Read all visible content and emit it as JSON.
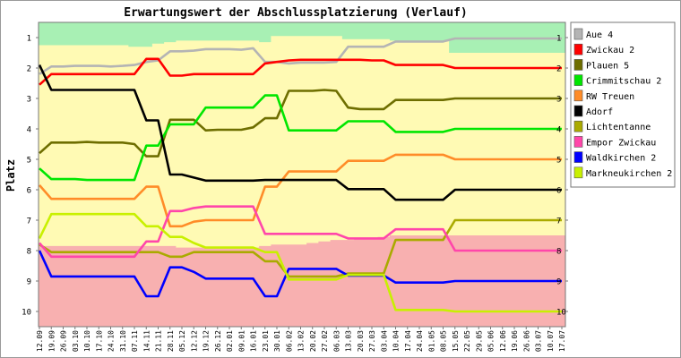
{
  "chart_data": {
    "type": "line",
    "title": "Erwartungswert der Abschlussplatzierung (Verlauf)",
    "ylabel": "Platz",
    "xlabel": "",
    "ylim": [
      10.5,
      0.5
    ],
    "y_ticks": [
      1,
      2,
      3,
      4,
      5,
      6,
      7,
      8,
      9,
      10
    ],
    "y_ticks_right": true,
    "legend_position": "right",
    "grid": false,
    "categories": [
      "12.09",
      "19.09",
      "26.09",
      "03.10",
      "10.10",
      "17.10",
      "24.10",
      "31.10",
      "07.11",
      "14.11",
      "21.11",
      "28.11",
      "05.12",
      "12.12",
      "19.12",
      "26.12",
      "02.01",
      "09.01",
      "16.01",
      "23.01",
      "30.01",
      "06.02",
      "13.02",
      "20.02",
      "27.02",
      "06.03",
      "13.03",
      "20.03",
      "27.03",
      "03.04",
      "10.04",
      "17.04",
      "24.04",
      "01.05",
      "08.05",
      "15.05",
      "22.05",
      "29.05",
      "05.06",
      "12.06",
      "19.06",
      "26.06",
      "03.07",
      "10.07",
      "17.07"
    ],
    "zones": [
      {
        "name": "zone-promotion",
        "color": "#a8f0b4",
        "bounds_start": [
          1.25,
          1.25,
          1.25,
          1.25,
          1.25,
          1.25,
          1.25,
          1.25,
          1.3,
          1.3,
          1.2,
          1.15,
          1.1,
          1.1,
          1.1,
          1.1,
          1.1,
          1.1,
          1.1,
          1.15,
          0.95,
          0.95,
          0.95,
          0.95,
          0.95,
          0.95,
          1.05,
          1.05,
          1.05,
          1.05,
          1.1,
          1.1,
          1.1,
          1.1,
          1.1,
          1.5,
          1.5,
          1.5,
          1.5,
          1.5,
          1.5,
          1.5,
          1.5,
          1.5,
          1.5
        ]
      },
      {
        "name": "zone-middle",
        "color": "#fffab4"
      },
      {
        "name": "zone-relegation",
        "color": "#f8b0b0",
        "bounds_start": [
          7.85,
          7.85,
          7.85,
          7.85,
          7.85,
          7.85,
          7.85,
          7.85,
          7.85,
          7.85,
          7.85,
          7.85,
          7.9,
          7.9,
          7.9,
          7.9,
          7.9,
          7.9,
          7.9,
          7.85,
          7.8,
          7.8,
          7.8,
          7.75,
          7.7,
          7.65,
          7.65,
          7.6,
          7.6,
          7.55,
          7.5,
          7.5,
          7.5,
          7.5,
          7.5,
          7.5,
          7.5,
          7.5,
          7.5,
          7.5,
          7.5,
          7.5,
          7.5,
          7.5,
          7.5
        ]
      }
    ],
    "series": [
      {
        "name": "Aue 4",
        "color": "#b4b4b4",
        "values": [
          2.2,
          1.95,
          1.95,
          1.93,
          1.93,
          1.93,
          1.95,
          1.93,
          1.9,
          1.8,
          1.75,
          1.45,
          1.45,
          1.43,
          1.38,
          1.38,
          1.38,
          1.4,
          1.35,
          1.8,
          1.8,
          1.85,
          1.82,
          1.82,
          1.82,
          1.8,
          1.3,
          1.3,
          1.3,
          1.3,
          1.13,
          1.13,
          1.13,
          1.13,
          1.13,
          1.03,
          1.03,
          1.03,
          1.03,
          1.03,
          1.03,
          1.03,
          1.03,
          1.03,
          1.03
        ]
      },
      {
        "name": "Zwickau 2",
        "color": "#ff0000",
        "values": [
          2.55,
          2.2,
          2.2,
          2.2,
          2.2,
          2.2,
          2.2,
          2.2,
          2.2,
          1.7,
          1.7,
          2.25,
          2.25,
          2.2,
          2.2,
          2.2,
          2.2,
          2.2,
          2.2,
          1.85,
          1.8,
          1.75,
          1.73,
          1.73,
          1.73,
          1.73,
          1.73,
          1.73,
          1.75,
          1.75,
          1.9,
          1.9,
          1.9,
          1.9,
          1.9,
          2.0,
          2.0,
          2.0,
          2.0,
          2.0,
          2.0,
          2.0,
          2.0,
          2.0,
          2.0
        ]
      },
      {
        "name": "Plauen 5",
        "color": "#6e6e00",
        "values": [
          4.8,
          4.45,
          4.45,
          4.45,
          4.43,
          4.45,
          4.45,
          4.45,
          4.5,
          4.9,
          4.9,
          3.7,
          3.7,
          3.7,
          4.05,
          4.03,
          4.03,
          4.03,
          3.95,
          3.65,
          3.65,
          2.75,
          2.75,
          2.75,
          2.72,
          2.75,
          3.3,
          3.35,
          3.35,
          3.35,
          3.05,
          3.05,
          3.05,
          3.05,
          3.05,
          3.0,
          3.0,
          3.0,
          3.0,
          3.0,
          3.0,
          3.0,
          3.0,
          3.0,
          3.0
        ]
      },
      {
        "name": "Crimmitschau 2",
        "color": "#00e600",
        "values": [
          5.3,
          5.65,
          5.65,
          5.65,
          5.68,
          5.68,
          5.68,
          5.68,
          5.68,
          4.55,
          4.55,
          3.85,
          3.85,
          3.85,
          3.3,
          3.3,
          3.3,
          3.3,
          3.3,
          2.9,
          2.9,
          4.05,
          4.05,
          4.05,
          4.05,
          4.05,
          3.75,
          3.75,
          3.75,
          3.75,
          4.1,
          4.1,
          4.1,
          4.1,
          4.1,
          4.0,
          4.0,
          4.0,
          4.0,
          4.0,
          4.0,
          4.0,
          4.0,
          4.0,
          4.0
        ]
      },
      {
        "name": "RW Treuen",
        "color": "#ff8c28",
        "values": [
          5.85,
          6.3,
          6.3,
          6.3,
          6.3,
          6.3,
          6.3,
          6.3,
          6.3,
          5.9,
          5.9,
          7.2,
          7.2,
          7.05,
          7.0,
          7.0,
          7.0,
          7.0,
          7.0,
          5.9,
          5.9,
          5.4,
          5.4,
          5.4,
          5.4,
          5.4,
          5.05,
          5.05,
          5.05,
          5.05,
          4.85,
          4.85,
          4.85,
          4.85,
          4.85,
          5.0,
          5.0,
          5.0,
          5.0,
          5.0,
          5.0,
          5.0,
          5.0,
          5.0,
          5.0
        ]
      },
      {
        "name": "Adorf",
        "color": "#000000",
        "values": [
          1.9,
          2.72,
          2.72,
          2.72,
          2.72,
          2.72,
          2.72,
          2.72,
          2.72,
          3.72,
          3.72,
          5.5,
          5.5,
          5.6,
          5.7,
          5.7,
          5.7,
          5.7,
          5.7,
          5.68,
          5.68,
          5.68,
          5.68,
          5.68,
          5.68,
          5.68,
          5.98,
          5.98,
          5.98,
          5.98,
          6.33,
          6.33,
          6.33,
          6.33,
          6.33,
          6.0,
          6.0,
          6.0,
          6.0,
          6.0,
          6.0,
          6.0,
          6.0,
          6.0,
          6.0
        ]
      },
      {
        "name": "Lichtentanne",
        "color": "#aaaa00",
        "values": [
          7.8,
          8.05,
          8.05,
          8.05,
          8.05,
          8.05,
          8.05,
          8.05,
          8.05,
          8.05,
          8.05,
          8.2,
          8.2,
          8.05,
          8.05,
          8.05,
          8.05,
          8.05,
          8.05,
          8.35,
          8.35,
          8.85,
          8.85,
          8.85,
          8.85,
          8.85,
          8.75,
          8.75,
          8.75,
          8.75,
          7.65,
          7.65,
          7.65,
          7.65,
          7.65,
          7.0,
          7.0,
          7.0,
          7.0,
          7.0,
          7.0,
          7.0,
          7.0,
          7.0,
          7.0
        ]
      },
      {
        "name": "Empor Zwickau",
        "color": "#ff46aa",
        "values": [
          7.75,
          8.2,
          8.2,
          8.2,
          8.2,
          8.2,
          8.2,
          8.2,
          8.2,
          7.7,
          7.7,
          6.7,
          6.7,
          6.6,
          6.55,
          6.55,
          6.55,
          6.55,
          6.55,
          7.45,
          7.45,
          7.45,
          7.45,
          7.45,
          7.45,
          7.45,
          7.6,
          7.6,
          7.6,
          7.6,
          7.3,
          7.3,
          7.3,
          7.3,
          7.3,
          8.0,
          8.0,
          8.0,
          8.0,
          8.0,
          8.0,
          8.0,
          8.0,
          8.0,
          8.0
        ]
      },
      {
        "name": "Waldkirchen 2",
        "color": "#0000ff",
        "values": [
          8.0,
          8.85,
          8.85,
          8.85,
          8.85,
          8.85,
          8.85,
          8.85,
          8.85,
          9.5,
          9.5,
          8.55,
          8.55,
          8.7,
          8.92,
          8.92,
          8.92,
          8.92,
          8.92,
          9.5,
          9.5,
          8.6,
          8.6,
          8.6,
          8.6,
          8.6,
          8.82,
          8.82,
          8.82,
          8.82,
          9.05,
          9.05,
          9.05,
          9.05,
          9.05,
          9.0,
          9.0,
          9.0,
          9.0,
          9.0,
          9.0,
          9.0,
          9.0,
          9.0,
          9.0
        ]
      },
      {
        "name": "Markneukirchen 2",
        "color": "#c8f000",
        "values": [
          7.6,
          6.8,
          6.8,
          6.8,
          6.8,
          6.8,
          6.8,
          6.8,
          6.8,
          7.2,
          7.2,
          7.55,
          7.55,
          7.75,
          7.9,
          7.9,
          7.9,
          7.9,
          7.9,
          8.05,
          8.05,
          8.95,
          8.95,
          8.95,
          8.95,
          8.95,
          8.8,
          8.8,
          8.8,
          8.8,
          9.95,
          9.95,
          9.95,
          9.95,
          9.95,
          10.0,
          10.0,
          10.0,
          10.0,
          10.0,
          10.0,
          10.0,
          10.0,
          10.0,
          10.0
        ]
      }
    ]
  }
}
